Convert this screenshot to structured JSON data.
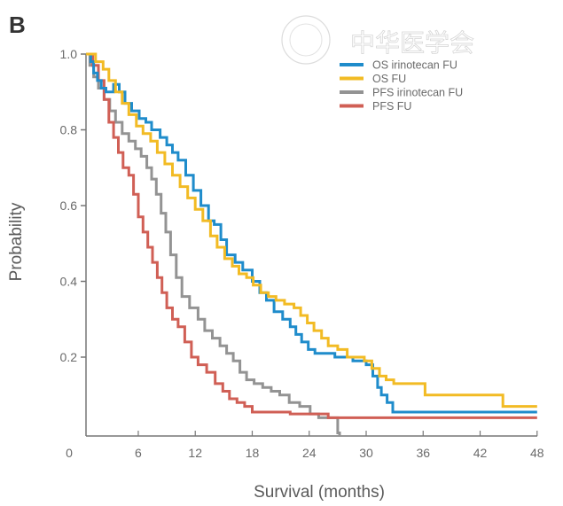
{
  "chart_data": {
    "type": "line",
    "panel_label": "B",
    "title": "",
    "xlabel": "Survival (months)",
    "ylabel": "Probability",
    "xlim": [
      0,
      48
    ],
    "ylim": [
      0,
      1.0
    ],
    "xticks": [
      0,
      6,
      12,
      18,
      24,
      30,
      36,
      42,
      48
    ],
    "xtick_labels": [
      "0",
      "6",
      "12",
      "18",
      "24",
      "30",
      "36",
      "42",
      "48"
    ],
    "yticks": [
      0.2,
      0.4,
      0.6,
      0.8,
      1.0
    ],
    "ytick_labels": [
      "0.2",
      "0.4",
      "0.6",
      "0.8",
      "1.0"
    ],
    "grid": false,
    "legend_position": "top-right",
    "step": true,
    "watermark": "中华医学会",
    "series": [
      {
        "name": "OS irinotecan FU",
        "color": "#1f8ccb",
        "x": [
          0.5,
          1.0,
          1.3,
          1.7,
          2.1,
          2.6,
          3.4,
          4.0,
          4.6,
          5.3,
          6.1,
          6.8,
          7.4,
          8.3,
          9.0,
          9.6,
          10.2,
          11.0,
          11.8,
          12.6,
          13.4,
          14.0,
          14.7,
          15.3,
          16.2,
          17.0,
          18.0,
          18.8,
          19.5,
          20.3,
          21.2,
          22.0,
          22.6,
          23.2,
          23.9,
          24.6,
          26.7,
          28.6,
          30.0,
          30.7,
          31.2,
          31.6,
          32.2,
          32.8,
          48.0
        ],
        "y": [
          1.0,
          0.98,
          0.95,
          0.93,
          0.91,
          0.9,
          0.92,
          0.9,
          0.87,
          0.85,
          0.83,
          0.82,
          0.8,
          0.78,
          0.76,
          0.74,
          0.72,
          0.68,
          0.64,
          0.6,
          0.56,
          0.55,
          0.51,
          0.47,
          0.45,
          0.43,
          0.4,
          0.37,
          0.35,
          0.32,
          0.3,
          0.28,
          0.26,
          0.24,
          0.22,
          0.21,
          0.2,
          0.19,
          0.18,
          0.15,
          0.12,
          0.1,
          0.08,
          0.055,
          0.055
        ]
      },
      {
        "name": "OS FU",
        "color": "#f2bb24",
        "x": [
          0.5,
          1.5,
          2.3,
          2.9,
          3.6,
          4.3,
          5.0,
          5.8,
          6.5,
          7.3,
          8.0,
          8.8,
          9.6,
          10.4,
          11.2,
          12.0,
          12.8,
          13.6,
          14.3,
          15.1,
          15.9,
          16.6,
          17.4,
          18.1,
          18.9,
          19.7,
          20.5,
          21.4,
          22.4,
          23.1,
          23.8,
          24.5,
          25.3,
          26.0,
          27.0,
          28.0,
          29.8,
          30.6,
          31.4,
          32.1,
          32.9,
          36.2,
          44.4,
          48.0
        ],
        "y": [
          1.0,
          0.98,
          0.96,
          0.93,
          0.9,
          0.87,
          0.84,
          0.81,
          0.79,
          0.77,
          0.74,
          0.71,
          0.68,
          0.65,
          0.62,
          0.59,
          0.56,
          0.52,
          0.49,
          0.46,
          0.44,
          0.42,
          0.41,
          0.39,
          0.37,
          0.36,
          0.35,
          0.34,
          0.33,
          0.31,
          0.29,
          0.27,
          0.25,
          0.23,
          0.22,
          0.2,
          0.19,
          0.17,
          0.15,
          0.14,
          0.13,
          0.1,
          0.07,
          0.07
        ]
      },
      {
        "name": "PFS irinotecan FU",
        "color": "#939393",
        "x": [
          0.5,
          0.9,
          1.3,
          1.8,
          2.4,
          3.0,
          3.6,
          4.3,
          5.0,
          5.7,
          6.3,
          6.9,
          7.4,
          7.9,
          8.4,
          8.9,
          9.4,
          10.0,
          10.6,
          11.4,
          12.3,
          13.0,
          13.8,
          14.6,
          15.3,
          16.0,
          16.7,
          17.4,
          18.2,
          19.1,
          20.0,
          20.9,
          21.9,
          23.0,
          24.1,
          25.0,
          26.0,
          27.0,
          27.2
        ],
        "y": [
          1.0,
          0.97,
          0.94,
          0.91,
          0.88,
          0.85,
          0.82,
          0.79,
          0.77,
          0.75,
          0.73,
          0.7,
          0.67,
          0.63,
          0.58,
          0.53,
          0.47,
          0.41,
          0.36,
          0.33,
          0.3,
          0.27,
          0.25,
          0.23,
          0.21,
          0.19,
          0.16,
          0.14,
          0.13,
          0.12,
          0.11,
          0.1,
          0.08,
          0.07,
          0.05,
          0.04,
          0.04,
          0.0,
          0.0
        ]
      },
      {
        "name": "PFS FU",
        "color": "#d05f55",
        "x": [
          0.5,
          1.2,
          1.8,
          2.4,
          2.9,
          3.4,
          3.9,
          4.4,
          5.0,
          5.5,
          6.0,
          6.5,
          7.0,
          7.5,
          8.0,
          8.5,
          9.0,
          9.6,
          10.2,
          10.9,
          11.6,
          12.3,
          13.2,
          14.1,
          14.9,
          15.6,
          16.4,
          17.2,
          18.0,
          22.0,
          26.0,
          48.0
        ],
        "y": [
          1.0,
          0.97,
          0.93,
          0.88,
          0.82,
          0.78,
          0.74,
          0.7,
          0.68,
          0.63,
          0.57,
          0.53,
          0.49,
          0.45,
          0.41,
          0.37,
          0.33,
          0.3,
          0.28,
          0.24,
          0.2,
          0.18,
          0.16,
          0.13,
          0.11,
          0.09,
          0.08,
          0.07,
          0.055,
          0.05,
          0.04,
          0.04
        ]
      }
    ]
  }
}
